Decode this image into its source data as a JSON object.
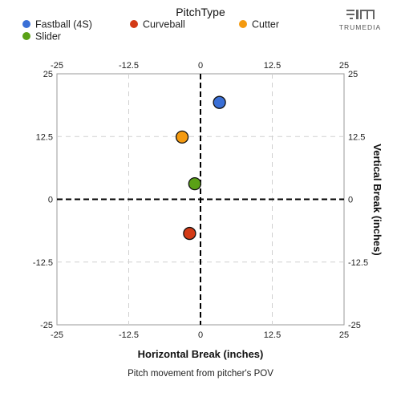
{
  "legend": {
    "title": "PitchType",
    "items": [
      {
        "label": "Fastball (4S)",
        "color": "#3a6fd6"
      },
      {
        "label": "Curveball",
        "color": "#d33a16"
      },
      {
        "label": "Cutter",
        "color": "#f49a10"
      },
      {
        "label": "Slider",
        "color": "#5aa116"
      }
    ]
  },
  "brand": {
    "name": "TRUMEDIA",
    "icon": "trumedia-logo-icon"
  },
  "caption": "Pitch movement from pitcher's POV",
  "chart_data": {
    "type": "scatter",
    "xlabel": "Horizontal Break (inches)",
    "ylabel": "Vertical Break (inches)",
    "xlim": [
      -25,
      25
    ],
    "ylim": [
      -25,
      25
    ],
    "xticks": [
      "-25",
      "-12.5",
      "0",
      "12.5",
      "25"
    ],
    "yticks": [
      "25",
      "12.5",
      "0",
      "-12.5",
      "-25"
    ],
    "tick_values": [
      -25,
      -12.5,
      0,
      12.5,
      25
    ],
    "grid": true,
    "legend_position": "top",
    "series": [
      {
        "name": "Fastball (4S)",
        "color": "#3a6fd6",
        "points": [
          {
            "x": 3.3,
            "y": 19.3
          }
        ]
      },
      {
        "name": "Curveball",
        "color": "#d33a16",
        "points": [
          {
            "x": -1.9,
            "y": -6.8
          }
        ]
      },
      {
        "name": "Cutter",
        "color": "#f49a10",
        "points": [
          {
            "x": -3.2,
            "y": 12.4
          }
        ]
      },
      {
        "name": "Slider",
        "color": "#5aa116",
        "points": [
          {
            "x": -1.0,
            "y": 3.1
          }
        ]
      }
    ]
  }
}
